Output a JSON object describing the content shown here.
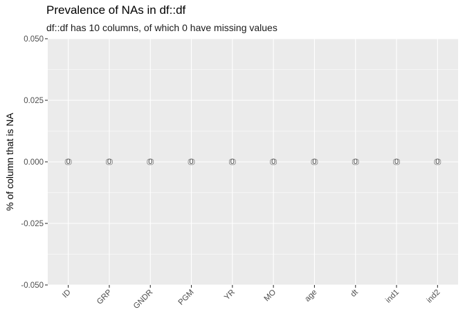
{
  "chart_data": {
    "type": "bar",
    "title": "Prevalence of NAs in df::df",
    "subtitle": "df::df has 10 columns, of which 0 have missing values",
    "xlabel": "",
    "ylabel": "% of column that is NA",
    "categories": [
      "ID",
      "GRP",
      "GNDR",
      "PGM",
      "YR",
      "MO",
      "age",
      "dt",
      "ind1",
      "ind2"
    ],
    "values": [
      0,
      0,
      0,
      0,
      0,
      0,
      0,
      0,
      0,
      0
    ],
    "data_labels": [
      "0",
      "0",
      "0",
      "0",
      "0",
      "0",
      "0",
      "0",
      "0",
      "0"
    ],
    "ylim": [
      -0.05,
      0.05
    ],
    "yticks": [
      -0.05,
      -0.025,
      0,
      0.025,
      0.05
    ],
    "ytick_labels": [
      "-0.050",
      "-0.025",
      "0.000",
      "0.025",
      "0.050"
    ],
    "grid": true,
    "colors": {
      "panel_background": "#ebebeb",
      "grid_major": "#ffffff",
      "tick_text": "#4d4d4d",
      "label_text": "#4d4d4d"
    }
  }
}
